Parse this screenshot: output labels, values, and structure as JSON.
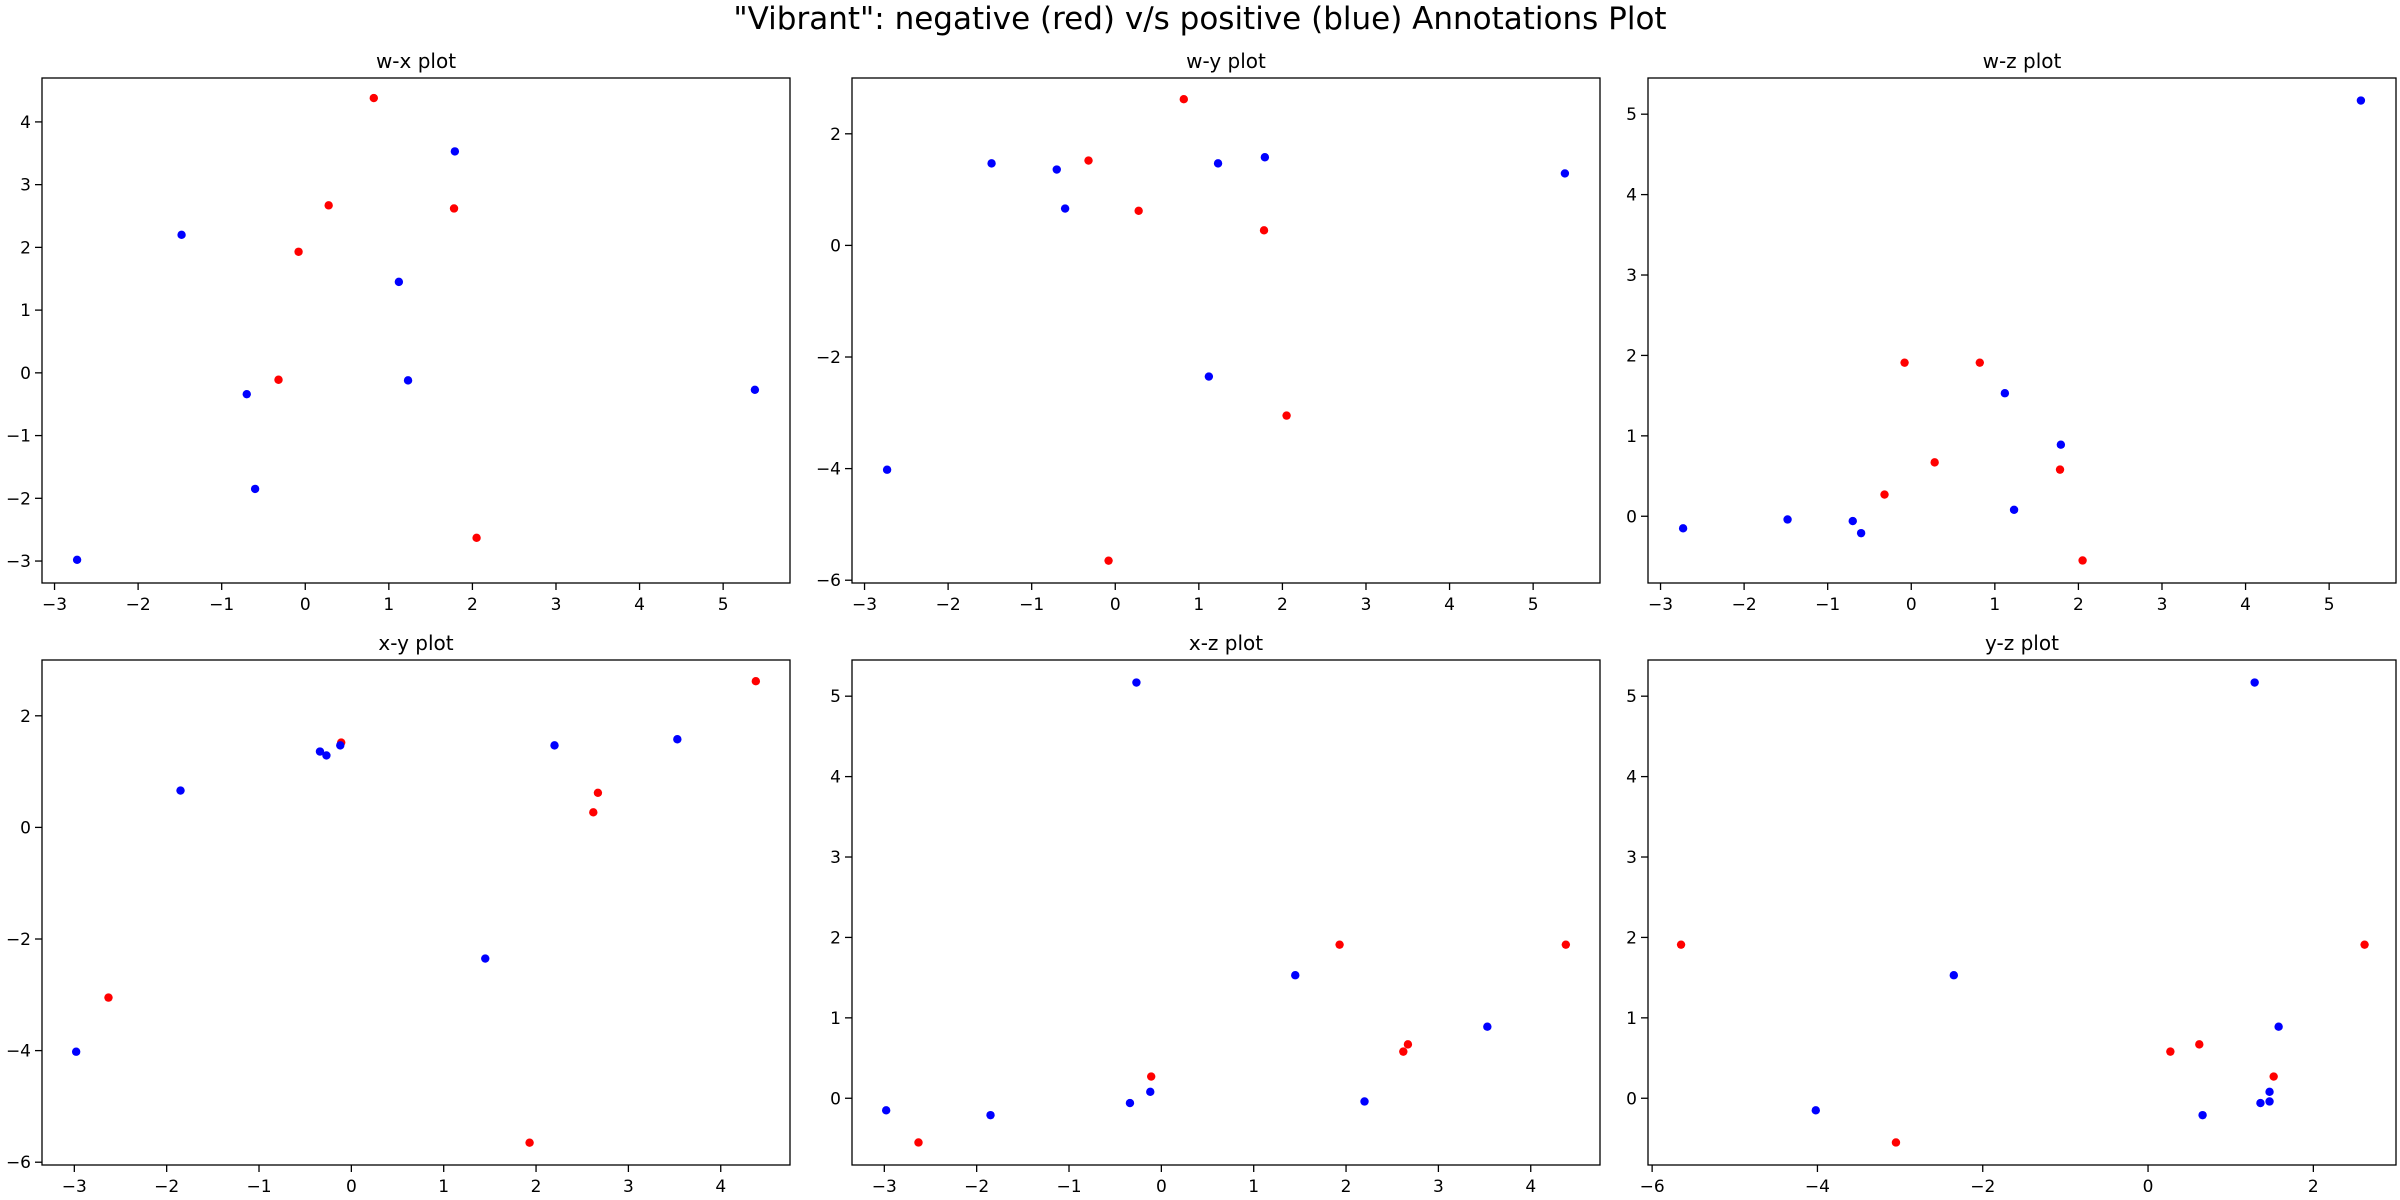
{
  "figure": {
    "title": "\"Vibrant\": negative (red) v/s positive (blue) Annotations Plot"
  },
  "colors": {
    "negative": "#ff0000",
    "positive": "#0000ff",
    "axis": "#000000",
    "background": "#ffffff"
  },
  "chart_data": [
    {
      "type": "scatter",
      "title": "w-x plot",
      "xlim": [
        -3.15,
        5.8
      ],
      "ylim": [
        -3.35,
        4.7
      ],
      "xticks": [
        -3,
        -2,
        -1,
        0,
        1,
        2,
        3,
        4,
        5
      ],
      "yticks": [
        -3,
        -2,
        -1,
        0,
        1,
        2,
        3,
        4
      ],
      "grid": false,
      "series": [
        {
          "class": "negative",
          "points": [
            [
              0.82,
              4.38
            ],
            [
              0.28,
              2.67
            ],
            [
              -0.08,
              1.93
            ],
            [
              1.78,
              2.62
            ],
            [
              -0.32,
              -0.11
            ],
            [
              2.05,
              -2.63
            ]
          ]
        },
        {
          "class": "positive",
          "points": [
            [
              1.79,
              3.53
            ],
            [
              -1.48,
              2.2
            ],
            [
              1.12,
              1.45
            ],
            [
              -0.7,
              -0.34
            ],
            [
              1.23,
              -0.12
            ],
            [
              5.38,
              -0.27
            ],
            [
              -0.6,
              -1.85
            ],
            [
              -2.73,
              -2.98
            ]
          ]
        }
      ]
    },
    {
      "type": "scatter",
      "title": "w-y plot",
      "xlim": [
        -3.15,
        5.8
      ],
      "ylim": [
        -6.05,
        3.0
      ],
      "xticks": [
        -3,
        -2,
        -1,
        0,
        1,
        2,
        3,
        4,
        5
      ],
      "yticks": [
        -6,
        -4,
        -2,
        0,
        2
      ],
      "grid": false,
      "series": [
        {
          "class": "negative",
          "points": [
            [
              0.82,
              2.62
            ],
            [
              -0.32,
              1.52
            ],
            [
              0.28,
              0.62
            ],
            [
              1.78,
              0.27
            ],
            [
              2.05,
              -3.05
            ],
            [
              -0.08,
              -5.65
            ]
          ]
        },
        {
          "class": "positive",
          "points": [
            [
              -1.48,
              1.47
            ],
            [
              -0.7,
              1.36
            ],
            [
              1.23,
              1.47
            ],
            [
              1.79,
              1.58
            ],
            [
              5.38,
              1.29
            ],
            [
              -0.6,
              0.66
            ],
            [
              1.12,
              -2.35
            ],
            [
              -2.73,
              -4.02
            ]
          ]
        }
      ]
    },
    {
      "type": "scatter",
      "title": "w-z plot",
      "xlim": [
        -3.15,
        5.8
      ],
      "ylim": [
        -0.83,
        5.45
      ],
      "xticks": [
        -3,
        -2,
        -1,
        0,
        1,
        2,
        3,
        4,
        5
      ],
      "yticks": [
        0,
        1,
        2,
        3,
        4,
        5
      ],
      "grid": false,
      "series": [
        {
          "class": "negative",
          "points": [
            [
              -0.08,
              1.91
            ],
            [
              0.82,
              1.91
            ],
            [
              0.28,
              0.67
            ],
            [
              -0.32,
              0.27
            ],
            [
              1.78,
              0.58
            ],
            [
              2.05,
              -0.55
            ]
          ]
        },
        {
          "class": "positive",
          "points": [
            [
              5.38,
              5.17
            ],
            [
              1.12,
              1.53
            ],
            [
              1.79,
              0.89
            ],
            [
              1.23,
              0.08
            ],
            [
              -2.73,
              -0.15
            ],
            [
              -1.48,
              -0.04
            ],
            [
              -0.7,
              -0.06
            ],
            [
              -0.6,
              -0.21
            ]
          ]
        }
      ]
    },
    {
      "type": "scatter",
      "title": "x-y plot",
      "xlim": [
        -3.35,
        4.75
      ],
      "ylim": [
        -6.05,
        3.0
      ],
      "xticks": [
        -3,
        -2,
        -1,
        0,
        1,
        2,
        3,
        4
      ],
      "yticks": [
        -6,
        -4,
        -2,
        0,
        2
      ],
      "grid": false,
      "series": [
        {
          "class": "negative",
          "points": [
            [
              4.38,
              2.62
            ],
            [
              -0.11,
              1.52
            ],
            [
              2.67,
              0.62
            ],
            [
              2.62,
              0.27
            ],
            [
              -2.63,
              -3.05
            ],
            [
              1.93,
              -5.65
            ]
          ]
        },
        {
          "class": "positive",
          "points": [
            [
              -0.34,
              1.36
            ],
            [
              -0.27,
              1.29
            ],
            [
              -0.12,
              1.47
            ],
            [
              -1.85,
              0.66
            ],
            [
              2.2,
              1.47
            ],
            [
              3.53,
              1.58
            ],
            [
              1.45,
              -2.35
            ],
            [
              -2.98,
              -4.02
            ]
          ]
        }
      ]
    },
    {
      "type": "scatter",
      "title": "x-z plot",
      "xlim": [
        -3.35,
        4.75
      ],
      "ylim": [
        -0.83,
        5.45
      ],
      "xticks": [
        -3,
        -2,
        -1,
        0,
        1,
        2,
        3,
        4
      ],
      "yticks": [
        0,
        1,
        2,
        3,
        4,
        5
      ],
      "grid": false,
      "series": [
        {
          "class": "negative",
          "points": [
            [
              1.93,
              1.91
            ],
            [
              4.38,
              1.91
            ],
            [
              2.62,
              0.58
            ],
            [
              2.67,
              0.67
            ],
            [
              -0.11,
              0.27
            ],
            [
              -2.63,
              -0.55
            ]
          ]
        },
        {
          "class": "positive",
          "points": [
            [
              -0.27,
              5.17
            ],
            [
              1.45,
              1.53
            ],
            [
              3.53,
              0.89
            ],
            [
              -2.98,
              -0.15
            ],
            [
              -1.85,
              -0.21
            ],
            [
              -0.34,
              -0.06
            ],
            [
              -0.12,
              0.08
            ],
            [
              2.2,
              -0.04
            ]
          ]
        }
      ]
    },
    {
      "type": "scatter",
      "title": "y-z plot",
      "xlim": [
        -6.05,
        3.0
      ],
      "ylim": [
        -0.83,
        5.45
      ],
      "xticks": [
        -6,
        -4,
        -2,
        0,
        2
      ],
      "yticks": [
        0,
        1,
        2,
        3,
        4,
        5
      ],
      "grid": false,
      "series": [
        {
          "class": "negative",
          "points": [
            [
              -5.65,
              1.91
            ],
            [
              2.62,
              1.91
            ],
            [
              0.27,
              0.58
            ],
            [
              0.62,
              0.67
            ],
            [
              1.52,
              0.27
            ],
            [
              -3.05,
              -0.55
            ]
          ]
        },
        {
          "class": "positive",
          "points": [
            [
              1.29,
              5.17
            ],
            [
              -2.35,
              1.53
            ],
            [
              1.58,
              0.89
            ],
            [
              1.47,
              0.08
            ],
            [
              1.36,
              -0.06
            ],
            [
              1.47,
              -0.04
            ],
            [
              0.66,
              -0.21
            ],
            [
              -4.02,
              -0.15
            ]
          ]
        }
      ]
    }
  ]
}
